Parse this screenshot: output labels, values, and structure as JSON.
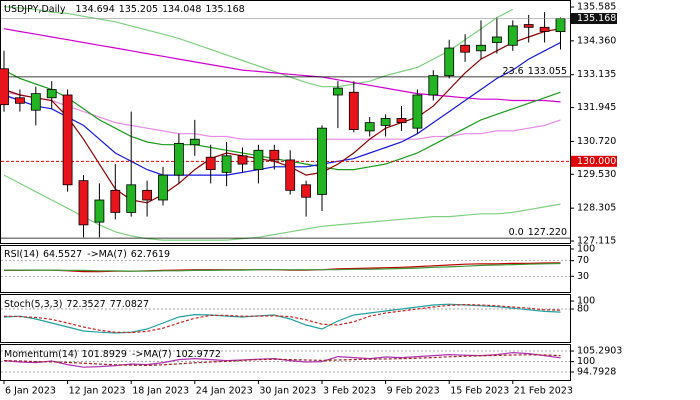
{
  "chart_data": [
    {
      "type": "candlestick",
      "title": "USDJPY,Daily",
      "categories": [
        "6 Jan 2023",
        null,
        null,
        null,
        "12 Jan 2023",
        null,
        null,
        null,
        "18 Jan 2023",
        null,
        null,
        null,
        "24 Jan 2023",
        null,
        null,
        null,
        "30 Jan 2023",
        null,
        null,
        null,
        "3 Feb 2023",
        null,
        null,
        null,
        "9 Feb 2023",
        null,
        null,
        null,
        "15 Feb 2023",
        null,
        null,
        null,
        "21 Feb 2023",
        null,
        null,
        null
      ],
      "open": [
        133.35,
        132.3,
        131.85,
        132.3,
        132.4,
        129.3,
        127.8,
        128.95,
        128.15,
        128.95,
        128.6,
        129.5,
        130.6,
        130.15,
        129.6,
        130.2,
        129.7,
        130.4,
        130.05,
        129.15,
        128.8,
        132.4,
        132.5,
        131.1,
        131.3,
        131.55,
        131.2,
        132.4,
        133.1,
        134.2,
        134.0,
        134.3,
        134.2,
        134.95,
        134.85,
        134.694
      ],
      "high": [
        134.0,
        132.6,
        132.7,
        132.9,
        132.6,
        129.5,
        129.2,
        129.9,
        131.8,
        129.3,
        129.8,
        131.0,
        131.5,
        130.6,
        130.7,
        130.5,
        130.6,
        130.6,
        130.4,
        129.3,
        131.3,
        132.9,
        132.9,
        131.6,
        131.7,
        132.0,
        132.6,
        133.3,
        134.4,
        134.6,
        135.1,
        135.2,
        135.1,
        135.3,
        135.4,
        135.205
      ],
      "low": [
        131.8,
        131.8,
        131.3,
        131.9,
        128.9,
        127.25,
        127.25,
        127.9,
        128.0,
        128.0,
        128.4,
        129.2,
        130.2,
        129.2,
        129.1,
        129.6,
        129.2,
        129.7,
        128.8,
        128.0,
        128.2,
        131.2,
        131.05,
        130.9,
        130.9,
        131.1,
        131.0,
        132.2,
        133.0,
        133.6,
        133.7,
        133.9,
        134.0,
        134.3,
        134.3,
        134.048
      ],
      "close": [
        132.05,
        132.1,
        132.45,
        132.6,
        129.15,
        127.7,
        128.6,
        128.15,
        129.15,
        128.6,
        129.5,
        130.65,
        130.8,
        129.7,
        130.2,
        129.9,
        130.4,
        130.05,
        128.95,
        128.7,
        131.2,
        132.65,
        131.15,
        131.4,
        131.55,
        131.4,
        132.4,
        133.1,
        134.1,
        133.95,
        134.2,
        134.5,
        134.9,
        134.85,
        134.7,
        135.168
      ],
      "up_color": "#22b422",
      "down_color": "#e8141c",
      "ylim": [
        127.08,
        135.73
      ],
      "yticks": [
        135.585,
        {
          "value": 134.36,
          "label": "134.360"
        },
        133.135,
        131.945,
        {
          "value": 130.72,
          "label": "130.720"
        },
        {
          "value": 129.53,
          "label": "129.530"
        },
        128.305,
        127.115
      ],
      "overlays": [
        {
          "color": "#7fd07f",
          "values": [
            135.6,
            135.55,
            135.5,
            135.4,
            135.35,
            135.25,
            135.15,
            135.05,
            134.9,
            134.75,
            134.6,
            134.45,
            134.25,
            134.05,
            133.85,
            133.65,
            133.45,
            133.25,
            133.05,
            132.85,
            132.7,
            132.7,
            132.8,
            132.9,
            133.1,
            133.25,
            133.4,
            133.7,
            134.0,
            134.4,
            134.8,
            135.2,
            135.5,
            null,
            null,
            null
          ]
        },
        {
          "color": "#7fd07f",
          "values": [
            129.5,
            129.2,
            128.9,
            128.6,
            128.3,
            128.0,
            127.7,
            127.45,
            127.3,
            127.2,
            127.15,
            127.15,
            127.15,
            127.15,
            127.15,
            127.2,
            127.25,
            127.35,
            127.45,
            127.55,
            127.65,
            127.7,
            127.75,
            127.8,
            127.85,
            127.9,
            127.95,
            128.0,
            128.0,
            128.05,
            128.1,
            128.1,
            128.15,
            128.25,
            128.35,
            128.45
          ]
        },
        {
          "color": "#e58ae5",
          "values": [
            132.5,
            132.4,
            132.3,
            132.2,
            132.0,
            131.8,
            131.6,
            131.4,
            131.3,
            131.2,
            131.1,
            131.0,
            131.0,
            130.9,
            130.9,
            130.8,
            130.8,
            130.8,
            130.8,
            130.8,
            130.8,
            130.8,
            130.8,
            130.8,
            130.8,
            130.8,
            130.8,
            130.9,
            130.9,
            131.0,
            131.0,
            131.1,
            131.1,
            131.2,
            131.3,
            131.5
          ]
        },
        {
          "color": "#d000d0",
          "values": [
            134.8,
            134.7,
            134.6,
            134.5,
            134.4,
            134.3,
            134.2,
            134.1,
            134.0,
            133.9,
            133.8,
            133.7,
            133.6,
            133.5,
            133.4,
            133.3,
            133.25,
            133.2,
            133.15,
            133.1,
            133.05,
            132.95,
            132.85,
            132.75,
            132.65,
            132.55,
            132.45,
            132.4,
            132.35,
            132.3,
            132.25,
            132.25,
            132.2,
            132.2,
            132.2,
            132.15
          ]
        },
        {
          "color": "#1a9a1a",
          "values": [
            133.3,
            133.0,
            132.8,
            132.6,
            132.3,
            131.9,
            131.5,
            131.2,
            130.9,
            130.7,
            130.6,
            130.6,
            130.6,
            130.5,
            130.4,
            130.3,
            130.2,
            130.1,
            130.0,
            129.9,
            129.8,
            129.7,
            129.7,
            129.8,
            129.9,
            130.1,
            130.3,
            130.6,
            130.9,
            131.2,
            131.5,
            131.7,
            131.9,
            132.1,
            132.3,
            132.5
          ]
        },
        {
          "color": "#1515e0",
          "values": [
            132.4,
            132.2,
            132.0,
            131.9,
            131.6,
            131.3,
            130.8,
            130.3,
            130.0,
            129.7,
            129.5,
            129.5,
            129.5,
            129.5,
            129.5,
            129.6,
            129.7,
            129.8,
            129.8,
            129.8,
            129.9,
            130.0,
            130.1,
            130.3,
            130.5,
            130.7,
            131.0,
            131.4,
            131.8,
            132.2,
            132.6,
            133.0,
            133.3,
            133.7,
            134.0,
            134.3
          ]
        },
        {
          "color": "#8b0000",
          "values": [
            132.6,
            132.4,
            132.3,
            132.2,
            131.6,
            130.8,
            129.9,
            129.0,
            128.6,
            128.5,
            128.8,
            129.2,
            129.7,
            130.1,
            130.3,
            130.2,
            130.1,
            130.0,
            129.8,
            129.5,
            129.6,
            129.9,
            130.3,
            130.8,
            131.2,
            131.4,
            131.6,
            132.0,
            132.6,
            133.2,
            133.7,
            134.0,
            134.3,
            134.5,
            134.7,
            134.8
          ]
        }
      ],
      "price_levels": [
        {
          "value": 130,
          "label": "130.000",
          "color": "#e00000"
        }
      ],
      "fib_levels": [
        {
          "ratio": "23.6",
          "price": 133.055
        },
        {
          "ratio": "0.0",
          "price": {
            "value": 127.22,
            "label": "127.220"
          }
        }
      ]
    },
    {
      "type": "line",
      "ylim": [
        0,
        100
      ],
      "yticks": [
        100,
        70,
        30
      ],
      "series": [
        {
          "name": "RSI(14)",
          "color": "#c00000",
          "values": [
            45,
            45,
            46,
            46,
            44,
            42,
            42,
            43,
            43,
            44,
            45,
            46,
            47,
            47,
            47,
            47,
            47,
            47,
            46,
            46,
            47,
            49,
            50,
            51,
            52,
            53,
            55,
            57,
            59,
            61,
            62,
            62,
            63,
            63,
            64,
            64.5527
          ]
        },
        {
          "name": "->MA(7)",
          "color": "#3a9a3a",
          "values": [
            46,
            46,
            46,
            46,
            45,
            45,
            44,
            44,
            43,
            43,
            44,
            44,
            45,
            45,
            46,
            46,
            47,
            47,
            47,
            47,
            47,
            47,
            48,
            48,
            49,
            50,
            51,
            53,
            54,
            56,
            58,
            59,
            60,
            61,
            62,
            62.7619
          ]
        }
      ]
    },
    {
      "type": "line",
      "ylim": [
        0,
        100
      ],
      "yticks": [
        100,
        80
      ],
      "series": [
        {
          "name": "Stoch(5,3,3)",
          "color": "#20a0a0",
          "values": [
            60,
            62,
            55,
            45,
            35,
            25,
            22,
            20,
            22,
            30,
            45,
            60,
            66,
            65,
            62,
            60,
            63,
            65,
            55,
            40,
            30,
            50,
            65,
            70,
            75,
            80,
            85,
            90,
            92,
            90,
            88,
            86,
            82,
            78,
            74,
            72.3527
          ]
        },
        {
          "color": "#d02020",
          "style": "dashed",
          "values": [
            62,
            61,
            59,
            54,
            45,
            35,
            27,
            22,
            21,
            24,
            32,
            45,
            57,
            64,
            64,
            62,
            62,
            63,
            61,
            53,
            42,
            40,
            48,
            62,
            70,
            75,
            80,
            85,
            89,
            91,
            90,
            88,
            85,
            82,
            78,
            77.0827
          ]
        }
      ]
    },
    {
      "type": "line",
      "ylim": [
        91.8,
        108.3
      ],
      "yticks": [
        105.2903,
        100,
        94.7928
      ],
      "series": [
        {
          "name": "Momentum(14)",
          "color": "#b030b0",
          "values": [
            100.5,
            99.8,
            99.5,
            100.3,
            98.5,
            97.2,
            97.5,
            98.0,
            98.8,
            98.5,
            99.5,
            101.0,
            101.5,
            101.0,
            100.5,
            100.8,
            101.2,
            101.5,
            100.5,
            99.8,
            100.0,
            102.5,
            102.0,
            101.5,
            102.3,
            102.0,
            102.5,
            103.0,
            103.5,
            103.2,
            103.0,
            103.5,
            104.5,
            104.0,
            103.0,
            101.8929
          ]
        },
        {
          "name": "->MA(7)",
          "color": "#a02020",
          "style": "dashed",
          "values": [
            100.5,
            100.3,
            100.0,
            99.9,
            99.6,
            99.2,
            98.8,
            98.4,
            98.2,
            98.1,
            98.4,
            98.9,
            99.4,
            99.8,
            100.1,
            100.6,
            101.0,
            101.2,
            101.0,
            100.8,
            100.6,
            100.8,
            101.0,
            101.2,
            101.3,
            101.5,
            101.7,
            102.0,
            102.4,
            102.7,
            102.9,
            103.1,
            103.3,
            103.4,
            103.3,
            102.9772
          ]
        }
      ]
    }
  ]
}
